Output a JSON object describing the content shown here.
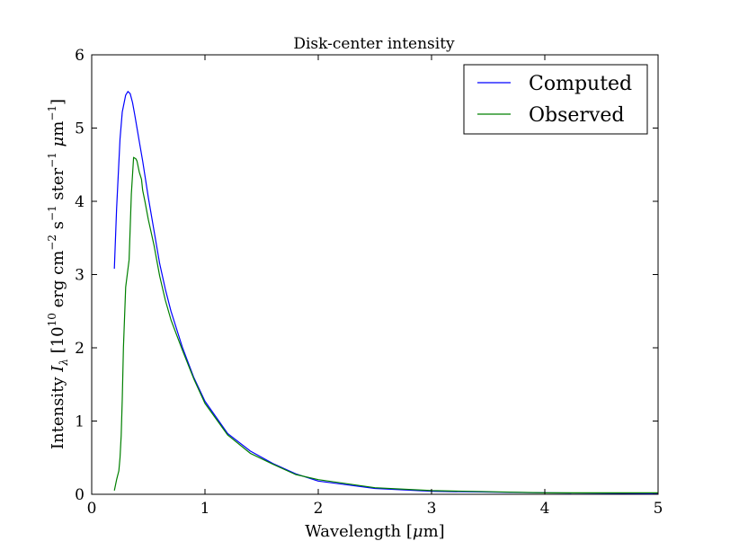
{
  "chart_data": {
    "type": "line",
    "title": "Disk-center intensity",
    "xlabel": {
      "prefix": "Wavelength [",
      "mu": "μ",
      "suffix": "m]"
    },
    "ylabel": {
      "prefix": "Intensity ",
      "I": "I",
      "lambda": "λ",
      "bracket_open": " [10",
      "exp10": "10",
      "erg": " erg cm",
      "exp_m2": "−2",
      "s": " s",
      "exp_m1a": "−1",
      "ster": " ster",
      "exp_m1b": "−1",
      "mu": " μ",
      "m": "m",
      "exp_m1c": "−1",
      "bracket_close": "]"
    },
    "xlim": [
      0,
      5
    ],
    "ylim": [
      0,
      6
    ],
    "x_ticks": [
      "0",
      "1",
      "2",
      "3",
      "4",
      "5"
    ],
    "y_ticks": [
      "0",
      "1",
      "2",
      "3",
      "4",
      "5",
      "6"
    ],
    "grid": false,
    "legend_position": "top-right",
    "series": [
      {
        "name": "Computed",
        "color": "#0000ff",
        "x": [
          0.2,
          0.22,
          0.25,
          0.27,
          0.3,
          0.32,
          0.34,
          0.36,
          0.38,
          0.4,
          0.42,
          0.45,
          0.5,
          0.55,
          0.6,
          0.65,
          0.7,
          0.8,
          0.9,
          1.0,
          1.2,
          1.4,
          1.6,
          1.8,
          2.0,
          2.5,
          3.0,
          4.0,
          5.0
        ],
        "y": [
          3.08,
          3.9,
          4.85,
          5.22,
          5.45,
          5.5,
          5.47,
          5.35,
          5.18,
          5.0,
          4.82,
          4.55,
          4.05,
          3.6,
          3.15,
          2.8,
          2.5,
          2.01,
          1.6,
          1.27,
          0.83,
          0.59,
          0.42,
          0.28,
          0.18,
          0.08,
          0.04,
          0.02,
          0.01
        ]
      },
      {
        "name": "Observed",
        "color": "#008000",
        "x": [
          0.2,
          0.22,
          0.24,
          0.25,
          0.26,
          0.27,
          0.28,
          0.3,
          0.33,
          0.35,
          0.37,
          0.39,
          0.4,
          0.42,
          0.44,
          0.45,
          0.47,
          0.5,
          0.55,
          0.6,
          0.65,
          0.7,
          0.8,
          0.9,
          1.0,
          1.2,
          1.4,
          1.6,
          1.8,
          2.0,
          2.5,
          3.0,
          4.0,
          5.0
        ],
        "y": [
          0.05,
          0.2,
          0.32,
          0.5,
          0.8,
          1.3,
          2.0,
          2.83,
          3.2,
          4.1,
          4.6,
          4.58,
          4.55,
          4.4,
          4.3,
          4.15,
          4.0,
          3.75,
          3.4,
          2.98,
          2.65,
          2.38,
          1.97,
          1.58,
          1.24,
          0.81,
          0.56,
          0.41,
          0.27,
          0.2,
          0.09,
          0.05,
          0.02,
          0.02
        ]
      }
    ]
  }
}
